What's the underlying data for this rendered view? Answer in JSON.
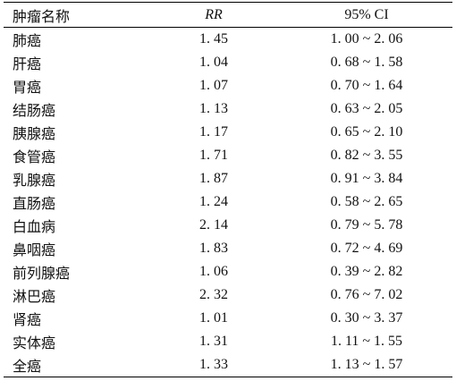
{
  "table": {
    "header": [
      "肿瘤名称",
      "RR",
      "95% CI"
    ],
    "rows": [
      [
        "肺癌",
        "1. 45",
        "1. 00 ~ 2. 06"
      ],
      [
        "肝癌",
        "1. 04",
        "0. 68 ~ 1. 58"
      ],
      [
        "胃癌",
        "1. 07",
        "0. 70 ~ 1. 64"
      ],
      [
        "结肠癌",
        "1. 13",
        "0. 63 ~ 2. 05"
      ],
      [
        "胰腺癌",
        "1. 17",
        "0. 65 ~ 2. 10"
      ],
      [
        "食管癌",
        "1. 71",
        "0. 82 ~ 3. 55"
      ],
      [
        "乳腺癌",
        "1. 87",
        "0. 91 ~ 3. 84"
      ],
      [
        "直肠癌",
        "1. 24",
        "0. 58 ~ 2. 65"
      ],
      [
        "白血病",
        "2. 14",
        "0. 79 ~ 5. 78"
      ],
      [
        "鼻咽癌",
        "1. 83",
        "0. 72 ~ 4. 69"
      ],
      [
        "前列腺癌",
        "1. 06",
        "0. 39 ~ 2. 82"
      ],
      [
        "淋巴癌",
        "2. 32",
        "0. 76 ~ 7. 02"
      ],
      [
        "肾癌",
        "1. 01",
        "0. 30 ~ 3. 37"
      ],
      [
        "实体癌",
        "1. 31",
        "1. 11 ~ 1. 55"
      ],
      [
        "全癌",
        "1. 33",
        "1. 13 ~ 1. 57"
      ]
    ]
  }
}
